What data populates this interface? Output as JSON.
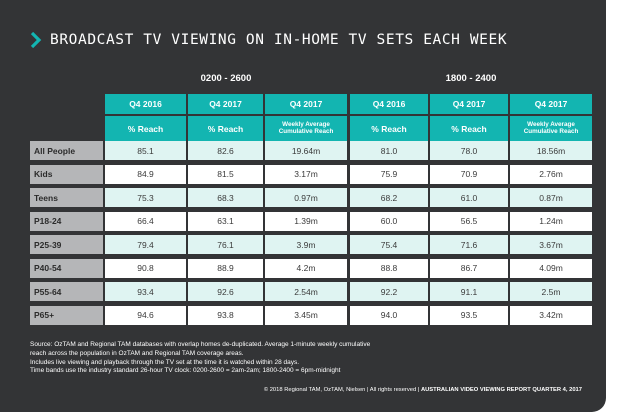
{
  "title": "BROADCAST TV VIEWING ON IN-HOME TV SETS EACH WEEK",
  "bands": [
    "0200 - 2600",
    "1800 - 2400"
  ],
  "headers_row1": [
    "Q4 2016",
    "Q4 2017",
    "Q4 2017",
    "Q4 2016",
    "Q4 2017",
    "Q4 2017"
  ],
  "headers_row2": [
    "% Reach",
    "% Reach",
    "Weekly Average Cumulative Reach",
    "% Reach",
    "% Reach",
    "Weekly Average Cumulative Reach"
  ],
  "rows": [
    {
      "label": "All People",
      "values": [
        "85.1",
        "82.6",
        "19.64m",
        "81.0",
        "78.0",
        "18.56m"
      ]
    },
    {
      "label": "Kids",
      "values": [
        "84.9",
        "81.5",
        "3.17m",
        "75.9",
        "70.9",
        "2.76m"
      ]
    },
    {
      "label": "Teens",
      "values": [
        "75.3",
        "68.3",
        "0.97m",
        "68.2",
        "61.0",
        "0.87m"
      ]
    },
    {
      "label": "P18-24",
      "values": [
        "66.4",
        "63.1",
        "1.39m",
        "60.0",
        "56.5",
        "1.24m"
      ]
    },
    {
      "label": "P25-39",
      "values": [
        "79.4",
        "76.1",
        "3.9m",
        "75.4",
        "71.6",
        "3.67m"
      ]
    },
    {
      "label": "P40-54",
      "values": [
        "90.8",
        "88.9",
        "4.2m",
        "88.8",
        "86.7",
        "4.09m"
      ]
    },
    {
      "label": "P55-64",
      "values": [
        "93.4",
        "92.6",
        "2.54m",
        "92.2",
        "91.1",
        "2.5m"
      ]
    },
    {
      "label": "P65+",
      "values": [
        "94.6",
        "93.8",
        "3.45m",
        "94.0",
        "93.5",
        "3.42m"
      ]
    }
  ],
  "source_lines": [
    "Source: OzTAM and Regional TAM databases with overlap homes de-duplicated. Average 1-minute weekly cumulative",
    "reach across the population in OzTAM and Regional TAM coverage areas.",
    "Includes live viewing and playback through the TV set at the time it is watched within 28 days.",
    "Time bands use the industry standard 26-hour TV clock: 0200-2600 = 2am-2am; 1800-2400 = 6pm-midnight"
  ],
  "footer": {
    "text": "© 2018 Regional TAM, OzTAM, Nielsen | All rights reserved | ",
    "bold": "AUSTRALIAN VIDEO VIEWING REPORT QUARTER 4, 2017"
  },
  "colors": {
    "panel": "#333436",
    "accent": "#13b5b1",
    "row_label": "#b5b6b8",
    "cell_alt": "#dff4f2"
  }
}
